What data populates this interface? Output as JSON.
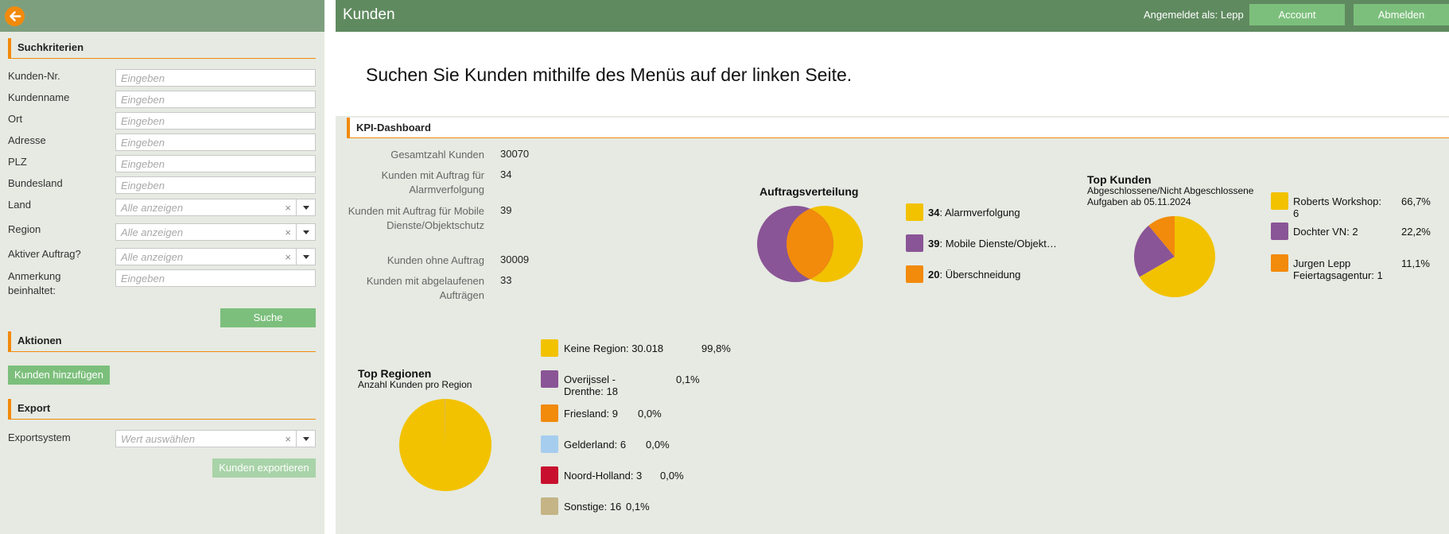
{
  "sidebar": {
    "search_section": "Suchkriterien",
    "fields": [
      {
        "label": "Kunden-Nr.",
        "placeholder": "Eingeben"
      },
      {
        "label": "Kundenname",
        "placeholder": "Eingeben"
      },
      {
        "label": "Ort",
        "placeholder": "Eingeben"
      },
      {
        "label": "Adresse",
        "placeholder": "Eingeben"
      },
      {
        "label": "PLZ",
        "placeholder": "Eingeben"
      },
      {
        "label": "Bundesland",
        "placeholder": "Eingeben"
      }
    ],
    "selects": [
      {
        "label": "Land",
        "placeholder": "Alle anzeigen"
      },
      {
        "label": "Region",
        "placeholder": "Alle anzeigen"
      },
      {
        "label": "Aktiver Auftrag?",
        "placeholder": "Alle anzeigen"
      }
    ],
    "note_label": "Anmerkung beinhaltet:",
    "note_placeholder": "Eingeben",
    "search_button": "Suche",
    "actions_section": "Aktionen",
    "add_button": "Kunden hinzufügen",
    "export_section": "Export",
    "export_label": "Exportsystem",
    "export_placeholder": "Wert auswählen",
    "export_button": "Kunden exportieren",
    "clear_glyph": "×"
  },
  "header": {
    "title": "Kunden",
    "login_text": "Angemeldet als: Lepp",
    "account_button": "Account",
    "logout_button": "Abmelden"
  },
  "main": {
    "welcome": "Suchen Sie Kunden mithilfe des Menüs auf der linken Seite.",
    "kpi_title": "KPI-Dashboard",
    "stats": [
      {
        "label": "Gesamtzahl Kunden",
        "value": "30070"
      },
      {
        "label": "Kunden mit Auftrag für Alarmverfolgung",
        "value": "34"
      },
      {
        "label": "Kunden mit Auftrag für Mobile Dienste/Objektschutz",
        "value": "39"
      },
      {
        "label": "Kunden ohne Auftrag",
        "value": "30009"
      },
      {
        "label": "Kunden mit abgelaufenen Aufträgen",
        "value": "33"
      }
    ]
  },
  "colors": {
    "yellow": "#f2c200",
    "purple": "#8a5596",
    "orange": "#f28a0c",
    "lightblue": "#a6cdee",
    "crimson": "#c8102e",
    "tan": "#c4b486",
    "accent": "#f28a0c",
    "header_green": "#5f8a5f",
    "button_green": "#7cbf7c"
  },
  "chart_data": [
    {
      "type": "venn",
      "title": "Auftragsverteilung",
      "legend": [
        {
          "value": "34",
          "label": "Alarmverfolgung",
          "color": "#f2c200"
        },
        {
          "value": "39",
          "label": "Mobile Dienste/Objekt…",
          "color": "#8a5596"
        },
        {
          "value": "20",
          "label": "Überschneidung",
          "color": "#f28a0c"
        }
      ]
    },
    {
      "type": "pie",
      "title": "Top Kunden",
      "subtitle": "Abgeschlossene/Nicht Abgeschlossene Aufgaben ab 05.11.2024",
      "slices": [
        {
          "label": "Roberts Workshop: 6",
          "value": 6,
          "pct": "66,7%",
          "color": "#f2c200"
        },
        {
          "label": "Dochter VN: 2",
          "value": 2,
          "pct": "22,2%",
          "color": "#8a5596"
        },
        {
          "label": "Jurgen Lepp Feiertagsagentur: 1",
          "value": 1,
          "pct": "11,1%",
          "color": "#f28a0c"
        }
      ]
    },
    {
      "type": "pie",
      "title": "Top Regionen",
      "subtitle": "Anzahl Kunden pro Region",
      "slices": [
        {
          "label": "Keine Region: 30.018",
          "value": 30018,
          "pct": "99,8%",
          "color": "#f2c200"
        },
        {
          "label": "Overijssel - Drenthe: 18",
          "value": 18,
          "pct": "0,1%",
          "color": "#8a5596"
        },
        {
          "label": "Friesland: 9",
          "value": 9,
          "pct": "0,0%",
          "color": "#f28a0c"
        },
        {
          "label": "Gelderland: 6",
          "value": 6,
          "pct": "0,0%",
          "color": "#a6cdee"
        },
        {
          "label": "Noord-Holland: 3",
          "value": 3,
          "pct": "0,0%",
          "color": "#c8102e"
        },
        {
          "label": "Sonstige: 16",
          "value": 16,
          "pct": "0,1%",
          "color": "#c4b486"
        }
      ]
    }
  ]
}
